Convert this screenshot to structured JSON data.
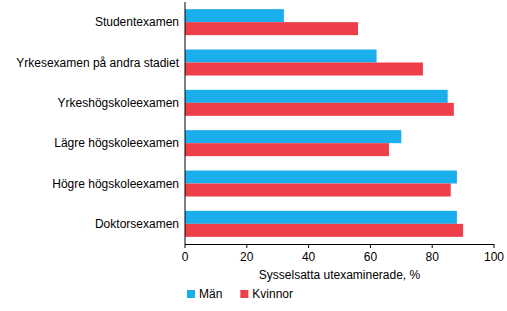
{
  "chart_data": {
    "type": "bar",
    "orientation": "horizontal",
    "categories": [
      "Studentexamen",
      "Yrkesexamen på andra stadiet",
      "Yrkeshögskoleexamen",
      "Lägre högskoleexamen",
      "Högre högskoleexamen",
      "Doktorsexamen"
    ],
    "series": [
      {
        "name": "Män",
        "color": "#1aaeec",
        "values": [
          32,
          62,
          85,
          70,
          88,
          88
        ]
      },
      {
        "name": "Kvinnor",
        "color": "#ee3e4a",
        "values": [
          56,
          77,
          87,
          66,
          86,
          90
        ]
      }
    ],
    "x_label": "Sysselsatta utexaminerade, %",
    "xlim": [
      0,
      100
    ],
    "xticks": [
      0,
      20,
      40,
      60,
      80,
      100
    ],
    "grid": false,
    "legend": "bottom"
  }
}
